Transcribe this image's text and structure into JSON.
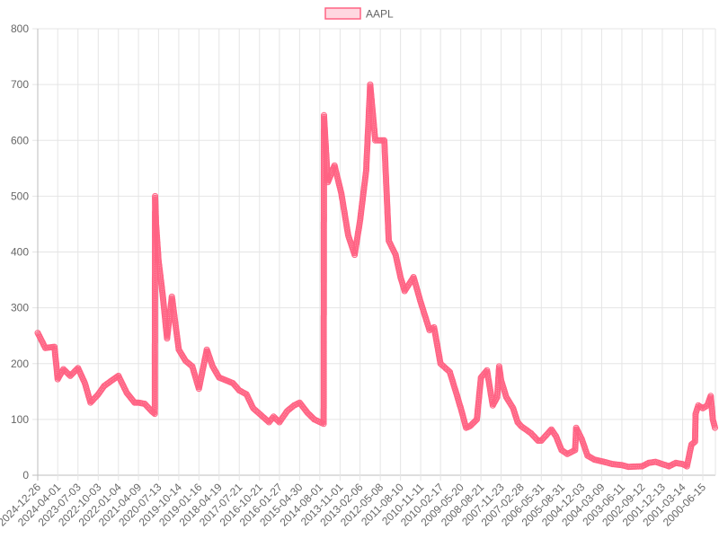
{
  "chart_data": {
    "type": "line",
    "title": "",
    "xlabel": "",
    "ylabel": "",
    "ylim": [
      0,
      800
    ],
    "y_ticks": [
      0,
      100,
      200,
      300,
      400,
      500,
      600,
      700,
      800
    ],
    "grid": true,
    "legend_position": "top-center",
    "x_axis_reversed": true,
    "x_tick_labels": [
      "2024-12-26",
      "2024-04-01",
      "2023-07-03",
      "2022-10-03",
      "2022-01-04",
      "2021-04-09",
      "2020-07-13",
      "2019-10-14",
      "2019-01-16",
      "2018-04-19",
      "2017-07-21",
      "2016-10-21",
      "2016-01-27",
      "2015-04-30",
      "2014-08-01",
      "2013-11-01",
      "2013-02-06",
      "2012-05-08",
      "2011-08-10",
      "2010-11-11",
      "2010-02-17",
      "2009-05-20",
      "2008-08-21",
      "2007-11-23",
      "2007-02-28",
      "2006-05-31",
      "2005-08-31",
      "2004-12-03",
      "2004-03-09",
      "2003-06-11",
      "2002-09-12",
      "2001-12-13",
      "2001-03-14",
      "2000-06-15"
    ],
    "series": [
      {
        "name": "AAPL",
        "color": "#ff6384",
        "points": [
          [
            "2024-12-26",
            255
          ],
          [
            "2024-09-15",
            228
          ],
          [
            "2024-05-15",
            230
          ],
          [
            "2024-04-01",
            172
          ],
          [
            "2024-01-15",
            190
          ],
          [
            "2023-10-15",
            178
          ],
          [
            "2023-07-03",
            192
          ],
          [
            "2023-04-01",
            165
          ],
          [
            "2023-01-15",
            130
          ],
          [
            "2022-10-03",
            145
          ],
          [
            "2022-07-15",
            160
          ],
          [
            "2022-04-01",
            170
          ],
          [
            "2022-01-04",
            178
          ],
          [
            "2021-09-15",
            148
          ],
          [
            "2021-06-01",
            130
          ],
          [
            "2021-04-09",
            130
          ],
          [
            "2021-01-15",
            128
          ],
          [
            "2020-10-15",
            115
          ],
          [
            "2020-09-01",
            110
          ],
          [
            "2020-08-28",
            500
          ],
          [
            "2020-08-15",
            450
          ],
          [
            "2020-07-13",
            385
          ],
          [
            "2020-05-15",
            320
          ],
          [
            "2020-03-20",
            245
          ],
          [
            "2020-01-15",
            320
          ],
          [
            "2019-10-14",
            225
          ],
          [
            "2019-07-15",
            205
          ],
          [
            "2019-04-15",
            195
          ],
          [
            "2019-01-16",
            155
          ],
          [
            "2018-10-01",
            225
          ],
          [
            "2018-07-15",
            195
          ],
          [
            "2018-04-19",
            175
          ],
          [
            "2018-01-15",
            170
          ],
          [
            "2017-10-15",
            165
          ],
          [
            "2017-07-21",
            152
          ],
          [
            "2017-04-15",
            145
          ],
          [
            "2017-01-15",
            120
          ],
          [
            "2016-10-21",
            110
          ],
          [
            "2016-06-15",
            95
          ],
          [
            "2016-04-15",
            105
          ],
          [
            "2016-01-27",
            95
          ],
          [
            "2015-10-15",
            115
          ],
          [
            "2015-07-15",
            125
          ],
          [
            "2015-04-30",
            130
          ],
          [
            "2015-01-15",
            112
          ],
          [
            "2014-10-15",
            100
          ],
          [
            "2014-06-10",
            92
          ],
          [
            "2014-06-06",
            645
          ],
          [
            "2014-04-15",
            525
          ],
          [
            "2014-01-15",
            555
          ],
          [
            "2013-10-15",
            505
          ],
          [
            "2013-07-15",
            430
          ],
          [
            "2013-04-19",
            395
          ],
          [
            "2013-02-06",
            455
          ],
          [
            "2012-11-15",
            545
          ],
          [
            "2012-09-21",
            700
          ],
          [
            "2012-07-15",
            600
          ],
          [
            "2012-05-08",
            600
          ],
          [
            "2012-03-15",
            600
          ],
          [
            "2012-01-15",
            420
          ],
          [
            "2011-10-15",
            395
          ],
          [
            "2011-08-10",
            355
          ],
          [
            "2011-06-15",
            330
          ],
          [
            "2011-02-15",
            355
          ],
          [
            "2010-11-11",
            310
          ],
          [
            "2010-07-15",
            260
          ],
          [
            "2010-05-15",
            265
          ],
          [
            "2010-02-17",
            200
          ],
          [
            "2009-10-15",
            185
          ],
          [
            "2009-07-15",
            145
          ],
          [
            "2009-05-20",
            120
          ],
          [
            "2009-03-09",
            85
          ],
          [
            "2009-01-15",
            88
          ],
          [
            "2008-10-15",
            100
          ],
          [
            "2008-08-21",
            175
          ],
          [
            "2008-06-01",
            188
          ],
          [
            "2008-03-15",
            125
          ],
          [
            "2008-01-15",
            140
          ],
          [
            "2007-12-20",
            195
          ],
          [
            "2007-11-23",
            170
          ],
          [
            "2007-09-15",
            140
          ],
          [
            "2007-06-15",
            120
          ],
          [
            "2007-04-15",
            95
          ],
          [
            "2007-02-28",
            88
          ],
          [
            "2006-10-15",
            75
          ],
          [
            "2006-07-15",
            62
          ],
          [
            "2006-05-31",
            62
          ],
          [
            "2006-01-15",
            82
          ],
          [
            "2005-11-15",
            70
          ],
          [
            "2005-08-31",
            45
          ],
          [
            "2005-06-15",
            38
          ],
          [
            "2005-03-01",
            45
          ],
          [
            "2005-02-15",
            85
          ],
          [
            "2004-12-03",
            65
          ],
          [
            "2004-09-15",
            35
          ],
          [
            "2004-06-15",
            28
          ],
          [
            "2004-03-09",
            25
          ],
          [
            "2003-10-15",
            20
          ],
          [
            "2003-06-11",
            18
          ],
          [
            "2003-03-15",
            15
          ],
          [
            "2002-09-12",
            16
          ],
          [
            "2002-06-15",
            22
          ],
          [
            "2002-03-15",
            24
          ],
          [
            "2001-12-13",
            20
          ],
          [
            "2001-09-15",
            16
          ],
          [
            "2001-06-15",
            22
          ],
          [
            "2001-03-14",
            20
          ],
          [
            "2001-01-15",
            16
          ],
          [
            "2000-11-15",
            55
          ],
          [
            "2000-09-28",
            60
          ],
          [
            "2000-09-20",
            110
          ],
          [
            "2000-08-15",
            125
          ],
          [
            "2000-06-15",
            120
          ],
          [
            "2000-04-15",
            125
          ],
          [
            "2000-03-01",
            142
          ],
          [
            "2000-02-01",
            100
          ],
          [
            "2000-01-03",
            85
          ]
        ]
      }
    ]
  }
}
